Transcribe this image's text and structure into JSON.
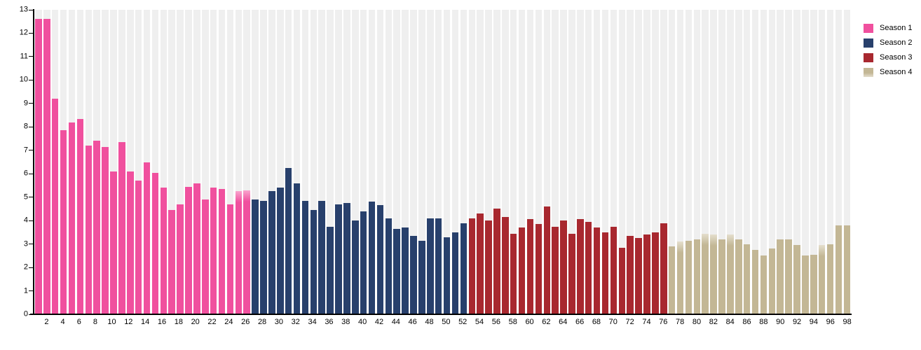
{
  "chart_data": {
    "type": "bar",
    "title": "",
    "xlabel": "",
    "ylabel": "",
    "ylim": [
      0,
      13
    ],
    "grid": false,
    "legend_position": "top-right",
    "background_stripe_color": "#efefef",
    "axis_color": "#000000",
    "y_tick_labels": [
      "0",
      "1",
      "2",
      "3",
      "4",
      "5",
      "6",
      "7",
      "8",
      "9",
      "10",
      "11",
      "12",
      "13"
    ],
    "x_tick_labels": [
      "2",
      "4",
      "6",
      "8",
      "10",
      "12",
      "14",
      "16",
      "18",
      "20",
      "22",
      "24",
      "26",
      "28",
      "30",
      "32",
      "34",
      "36",
      "38",
      "40",
      "42",
      "44",
      "46",
      "48",
      "50",
      "52",
      "54",
      "56",
      "58",
      "60",
      "62",
      "64",
      "66",
      "68",
      "70",
      "72",
      "74",
      "76",
      "78",
      "80",
      "82",
      "84",
      "86",
      "88",
      "90",
      "92",
      "94",
      "96",
      "98"
    ],
    "faded_episodes": [
      25,
      26,
      78,
      81,
      82,
      84,
      95
    ],
    "series": [
      {
        "name": "Season 1",
        "color": "#f0509e",
        "fade_color": "#f9a4cd",
        "values": [
          12.6,
          12.6,
          9.2,
          7.85,
          8.2,
          8.35,
          7.2,
          7.4,
          7.15,
          6.1,
          7.35,
          6.1,
          5.7,
          6.5,
          6.05,
          5.4,
          4.45,
          4.7,
          5.45,
          5.6,
          4.9,
          5.4,
          5.35,
          4.7,
          5.25,
          5.3
        ]
      },
      {
        "name": "Season 2",
        "color": "#28406c",
        "fade_color": "#93a2bd",
        "values": [
          4.9,
          4.85,
          5.25,
          5.4,
          6.25,
          5.6,
          4.85,
          4.45,
          4.85,
          3.75,
          4.7,
          4.75,
          4.0,
          4.4,
          4.8,
          4.65,
          4.1,
          3.65,
          3.7,
          3.35,
          3.15,
          4.1,
          4.1,
          3.3,
          3.5,
          3.9
        ]
      },
      {
        "name": "Season 3",
        "color": "#a8282f",
        "fade_color": "#d09396",
        "values": [
          4.1,
          4.3,
          4.0,
          4.5,
          4.15,
          3.45,
          3.7,
          4.05,
          3.85,
          4.6,
          3.75,
          4.0,
          3.45,
          4.05,
          3.95,
          3.7,
          3.5,
          3.75,
          2.85,
          3.35,
          3.25,
          3.4,
          3.5,
          3.9
        ]
      },
      {
        "name": "Season 4",
        "color": "#c3b795",
        "fade_color": "#e4decd",
        "values": [
          2.9,
          3.1,
          3.15,
          3.2,
          3.45,
          3.4,
          3.2,
          3.4,
          3.2,
          3.0,
          2.75,
          2.5,
          2.8,
          3.2,
          3.2,
          2.95,
          2.5,
          2.55,
          2.95,
          3.0,
          3.8,
          3.8
        ]
      }
    ]
  }
}
